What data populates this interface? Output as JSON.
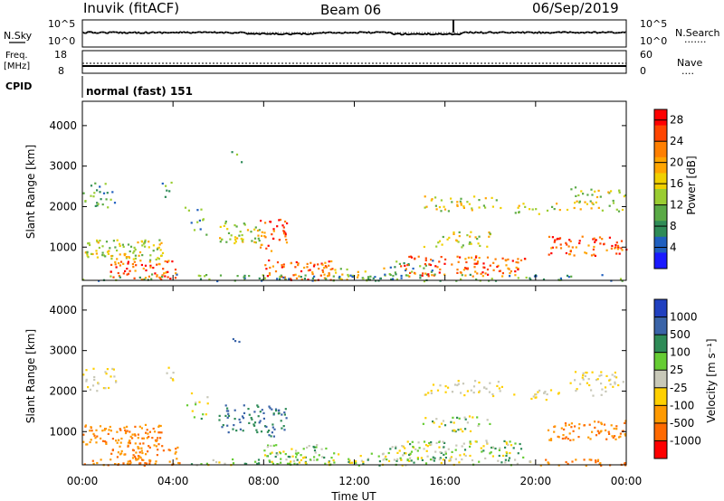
{
  "header": {
    "station": "Inuvik (fitACF)",
    "beam": "Beam 06",
    "date": "06/Sep/2019"
  },
  "noise_panel": {
    "left_label": "N.Sky",
    "left_ticks": [
      "10^5",
      "10^0"
    ],
    "right_ticks": [
      "10^5",
      "10^0"
    ],
    "right_label": "N.Search",
    "right_legend": "·······"
  },
  "freq_panel": {
    "left_label_1": "Freq.",
    "left_label_2": "[MHz]",
    "left_ticks": [
      "18",
      "8"
    ],
    "right_ticks": [
      "60",
      "0"
    ],
    "right_label": "Nave",
    "right_legend": "····"
  },
  "cpid_panel": {
    "label": "CPID",
    "text": "normal (fast) 151"
  },
  "x_axis": {
    "ticks": [
      "00:00",
      "04:00",
      "08:00",
      "12:00",
      "16:00",
      "20:00",
      "00:00"
    ],
    "label": "Time UT"
  },
  "colors": {
    "power_bar": [
      "#1a1aff",
      "#1f5fbf",
      "#2e8b57",
      "#5aaa46",
      "#9acd32",
      "#f0d000",
      "#ffa500",
      "#ff7f00",
      "#ff4500",
      "#ff0000"
    ],
    "velocity_bar": [
      "#2040c0",
      "#3a64a8",
      "#2e8b57",
      "#66cc33",
      "#c8c8b8",
      "#ffd000",
      "#ff9a00",
      "#ff6a00",
      "#ff0000"
    ]
  },
  "chart_data": [
    {
      "type": "heatmap",
      "title": "Power",
      "xlabel": "Time UT",
      "ylabel": "Slant Range [km]",
      "x_ticks": [
        "00:00",
        "04:00",
        "08:00",
        "12:00",
        "16:00",
        "20:00",
        "00:00"
      ],
      "y_ticks": [
        1000,
        2000,
        3000,
        4000
      ],
      "ylim": [
        180,
        4600
      ],
      "colorbar": {
        "label": "Power [dB]",
        "ticks": [
          4,
          8,
          12,
          16,
          20,
          24,
          28
        ],
        "range": [
          0,
          30
        ]
      }
    },
    {
      "type": "heatmap",
      "title": "Velocity",
      "xlabel": "Time UT",
      "ylabel": "Slant Range [km]",
      "x_ticks": [
        "00:00",
        "04:00",
        "08:00",
        "12:00",
        "16:00",
        "20:00",
        "00:00"
      ],
      "y_ticks": [
        1000,
        2000,
        3000,
        4000
      ],
      "ylim": [
        180,
        4600
      ],
      "colorbar": {
        "label": "Velocity [m s⁻¹]",
        "ticks": [
          "1000",
          "500",
          "100",
          "25",
          "-25",
          "-100",
          "-500",
          "-1000"
        ]
      }
    }
  ]
}
